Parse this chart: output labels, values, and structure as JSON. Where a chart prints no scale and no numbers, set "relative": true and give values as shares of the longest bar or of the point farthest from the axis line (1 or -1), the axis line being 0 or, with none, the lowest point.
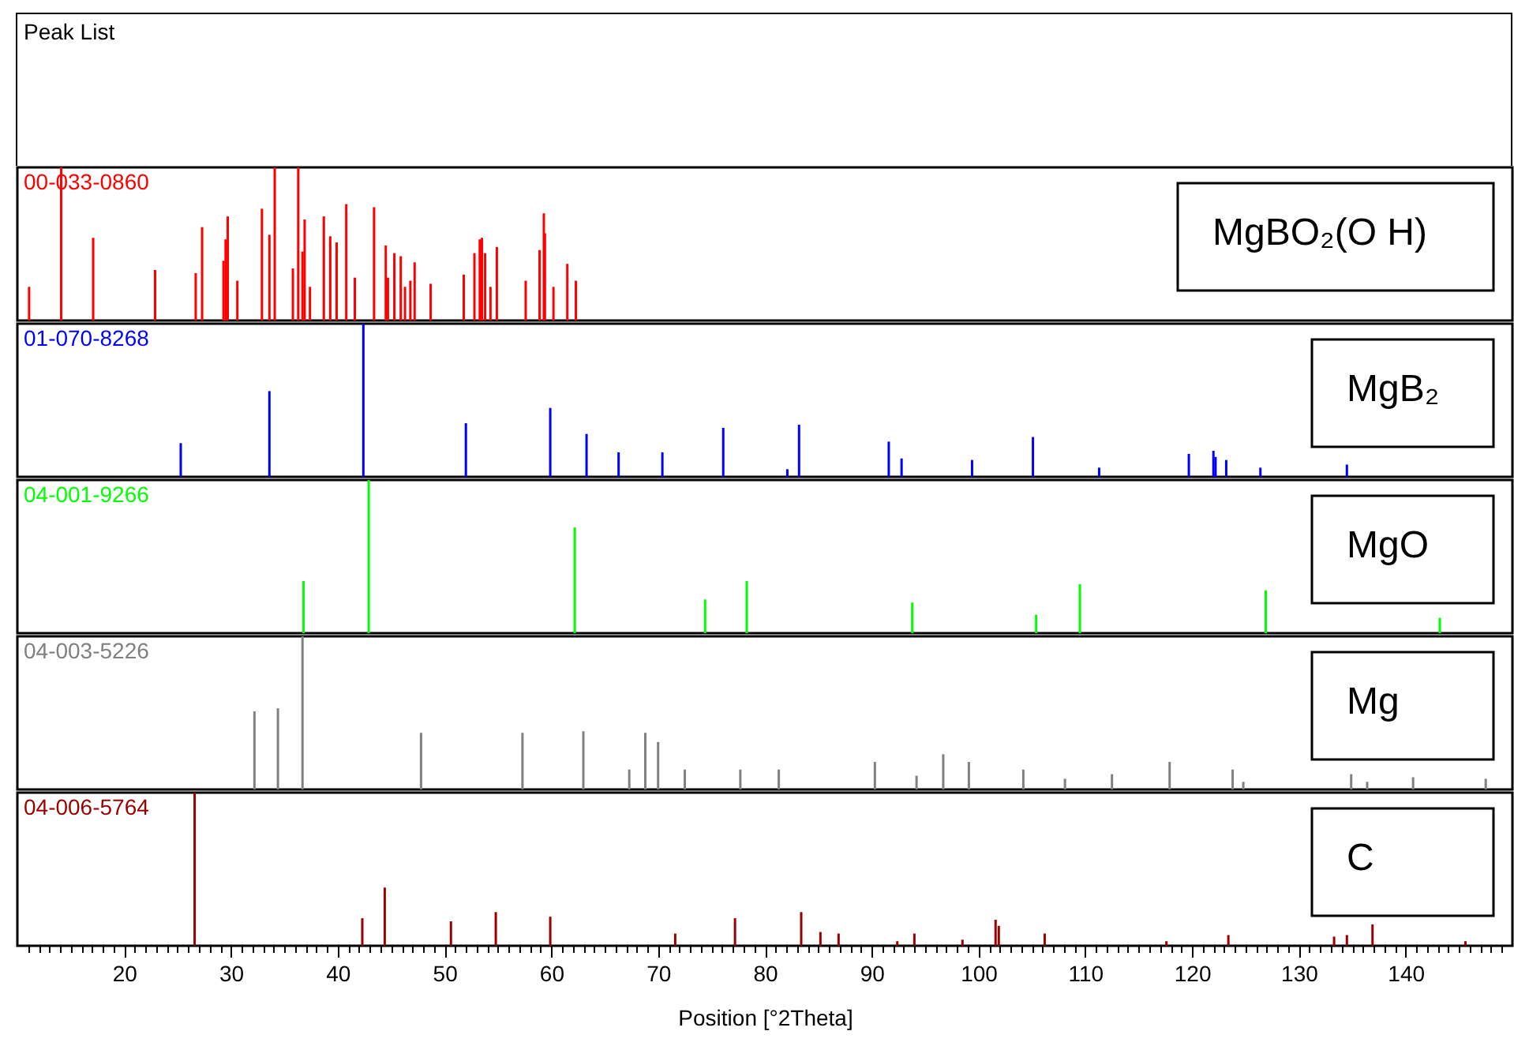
{
  "chart_data": [
    {
      "type": "other",
      "title": "Peak List"
    },
    {
      "type": "bar",
      "title": "00-033-0860",
      "annotations": [
        "MgBO₂(O H)"
      ],
      "relative": true,
      "xlim": [
        10,
        150
      ],
      "tick_labels": false,
      "x": [
        11.1,
        14.1,
        17.1,
        22.9,
        26.7,
        27.3,
        29.3,
        29.5,
        29.7,
        30.6,
        32.9,
        33.6,
        34.1,
        35.8,
        36.3,
        36.7,
        36.9,
        37.4,
        38.7,
        39.3,
        39.9,
        40.8,
        41.6,
        43.4,
        44.5,
        44.7,
        45.3,
        45.9,
        46.3,
        46.8,
        47.2,
        48.7,
        51.8,
        52.8,
        53.3,
        53.5,
        53.8,
        54.3,
        54.9,
        57.6,
        58.9,
        59.3,
        59.4,
        60.2,
        61.5,
        62.3
      ],
      "series": [
        {
          "color": "#ff0000",
          "values": [
            0.22,
            1.0,
            0.54,
            0.33,
            0.31,
            0.61,
            0.39,
            0.53,
            0.68,
            0.26,
            0.73,
            0.56,
            1.0,
            0.34,
            1.0,
            0.45,
            0.66,
            0.22,
            0.68,
            0.55,
            0.51,
            0.76,
            0.28,
            0.74,
            0.49,
            0.28,
            0.44,
            0.42,
            0.22,
            0.26,
            0.38,
            0.24,
            0.3,
            0.44,
            0.53,
            0.54,
            0.44,
            0.22,
            0.48,
            0.26,
            0.46,
            0.7,
            0.57,
            0.22,
            0.37,
            0.26
          ]
        }
      ]
    },
    {
      "type": "bar",
      "title": "01-070-8268",
      "annotations": [
        "MgB₂"
      ],
      "relative": true,
      "xlim": [
        10,
        150
      ],
      "tick_labels": false,
      "x": [
        25.3,
        33.6,
        42.4,
        52.0,
        59.9,
        63.3,
        66.3,
        70.4,
        76.1,
        82.1,
        83.2,
        91.6,
        92.8,
        99.4,
        105.1,
        111.3,
        119.7,
        122.0,
        122.2,
        123.2,
        126.4,
        134.5
      ],
      "series": [
        {
          "color": "#0000ff",
          "values": [
            0.22,
            0.56,
            1.0,
            0.35,
            0.45,
            0.28,
            0.16,
            0.16,
            0.32,
            0.05,
            0.34,
            0.23,
            0.12,
            0.11,
            0.26,
            0.06,
            0.15,
            0.17,
            0.13,
            0.11,
            0.06,
            0.08
          ]
        }
      ]
    },
    {
      "type": "bar",
      "title": "04-001-9266",
      "annotations": [
        "MgO"
      ],
      "relative": true,
      "xlim": [
        10,
        150
      ],
      "tick_labels": false,
      "x": [
        36.8,
        42.9,
        62.2,
        74.4,
        78.3,
        93.8,
        105.4,
        109.5,
        126.9,
        143.2
      ],
      "series": [
        {
          "color": "#00ff00",
          "values": [
            0.34,
            1.0,
            0.69,
            0.22,
            0.34,
            0.2,
            0.12,
            0.32,
            0.28,
            0.1
          ]
        }
      ]
    },
    {
      "type": "bar",
      "title": "04-003-5226",
      "annotations": [
        "Mg"
      ],
      "relative": true,
      "xlim": [
        10,
        150
      ],
      "tick_labels": false,
      "x": [
        32.2,
        34.4,
        36.7,
        47.8,
        57.3,
        63.0,
        67.3,
        68.8,
        70.0,
        72.5,
        77.7,
        81.3,
        90.3,
        94.2,
        96.7,
        99.1,
        104.2,
        108.1,
        112.5,
        117.9,
        123.8,
        124.8,
        134.9,
        136.4,
        140.7,
        147.5
      ],
      "series": [
        {
          "color": "#808080",
          "values": [
            0.51,
            0.53,
            1.0,
            0.37,
            0.37,
            0.38,
            0.13,
            0.37,
            0.31,
            0.13,
            0.13,
            0.13,
            0.18,
            0.09,
            0.23,
            0.18,
            0.13,
            0.07,
            0.1,
            0.18,
            0.13,
            0.05,
            0.1,
            0.05,
            0.08,
            0.07
          ]
        }
      ]
    },
    {
      "type": "bar",
      "title": "04-006-5764",
      "annotations": [
        "C"
      ],
      "relative": true,
      "xlim": [
        10,
        150
      ],
      "tick_labels": "x",
      "xlabel": "Position [°2Theta]",
      "x": [
        26.6,
        42.3,
        44.4,
        50.6,
        54.8,
        59.9,
        71.6,
        77.2,
        83.4,
        85.2,
        86.9,
        92.4,
        94.0,
        98.5,
        101.6,
        101.9,
        106.2,
        117.6,
        123.4,
        133.3,
        134.5,
        136.9,
        145.6
      ],
      "series": [
        {
          "color": "#990000",
          "values": [
            1.0,
            0.18,
            0.38,
            0.16,
            0.22,
            0.19,
            0.08,
            0.18,
            0.22,
            0.09,
            0.08,
            0.03,
            0.08,
            0.04,
            0.17,
            0.13,
            0.08,
            0.03,
            0.07,
            0.06,
            0.07,
            0.14,
            0.03
          ]
        }
      ],
      "xticks": [
        {
          "value": 11,
          "label": null
        },
        {
          "value": 12,
          "label": null
        },
        {
          "value": 13,
          "label": null
        },
        {
          "value": 14,
          "label": null
        },
        {
          "value": 15,
          "label": null
        },
        {
          "value": 16,
          "label": null
        },
        {
          "value": 17,
          "label": null
        },
        {
          "value": 18,
          "label": null
        },
        {
          "value": 19,
          "label": null
        },
        20,
        {
          "value": 21,
          "label": null
        },
        {
          "value": 22,
          "label": null
        },
        {
          "value": 23,
          "label": null
        },
        {
          "value": 24,
          "label": null
        },
        {
          "value": 25,
          "label": null
        },
        {
          "value": 26,
          "label": null
        },
        {
          "value": 27,
          "label": null
        },
        {
          "value": 28,
          "label": null
        },
        {
          "value": 29,
          "label": null
        },
        30,
        {
          "value": 31,
          "label": null
        },
        {
          "value": 32,
          "label": null
        },
        {
          "value": 33,
          "label": null
        },
        {
          "value": 34,
          "label": null
        },
        {
          "value": 35,
          "label": null
        },
        {
          "value": 36,
          "label": null
        },
        {
          "value": 37,
          "label": null
        },
        {
          "value": 38,
          "label": null
        },
        {
          "value": 39,
          "label": null
        },
        40,
        {
          "value": 41,
          "label": null
        },
        {
          "value": 42,
          "label": null
        },
        {
          "value": 43,
          "label": null
        },
        {
          "value": 44,
          "label": null
        },
        {
          "value": 45,
          "label": null
        },
        {
          "value": 46,
          "label": null
        },
        {
          "value": 47,
          "label": null
        },
        {
          "value": 48,
          "label": null
        },
        {
          "value": 49,
          "label": null
        },
        50,
        {
          "value": 51,
          "label": null
        },
        {
          "value": 52,
          "label": null
        },
        {
          "value": 53,
          "label": null
        },
        {
          "value": 54,
          "label": null
        },
        {
          "value": 55,
          "label": null
        },
        {
          "value": 56,
          "label": null
        },
        {
          "value": 57,
          "label": null
        },
        {
          "value": 58,
          "label": null
        },
        {
          "value": 59,
          "label": null
        },
        60,
        {
          "value": 61,
          "label": null
        },
        {
          "value": 62,
          "label": null
        },
        {
          "value": 63,
          "label": null
        },
        {
          "value": 64,
          "label": null
        },
        {
          "value": 65,
          "label": null
        },
        {
          "value": 66,
          "label": null
        },
        {
          "value": 67,
          "label": null
        },
        {
          "value": 68,
          "label": null
        },
        {
          "value": 69,
          "label": null
        },
        70,
        {
          "value": 71,
          "label": null
        },
        {
          "value": 72,
          "label": null
        },
        {
          "value": 73,
          "label": null
        },
        {
          "value": 74,
          "label": null
        },
        {
          "value": 75,
          "label": null
        },
        {
          "value": 76,
          "label": null
        },
        {
          "value": 77,
          "label": null
        },
        {
          "value": 78,
          "label": null
        },
        {
          "value": 79,
          "label": null
        },
        80,
        {
          "value": 81,
          "label": null
        },
        {
          "value": 82,
          "label": null
        },
        {
          "value": 83,
          "label": null
        },
        {
          "value": 84,
          "label": null
        },
        {
          "value": 85,
          "label": null
        },
        {
          "value": 86,
          "label": null
        },
        {
          "value": 87,
          "label": null
        },
        {
          "value": 88,
          "label": null
        },
        {
          "value": 89,
          "label": null
        },
        90,
        {
          "value": 91,
          "label": null
        },
        {
          "value": 92,
          "label": null
        },
        {
          "value": 93,
          "label": null
        },
        {
          "value": 94,
          "label": null
        },
        {
          "value": 95,
          "label": null
        },
        {
          "value": 96,
          "label": null
        },
        {
          "value": 97,
          "label": null
        },
        {
          "value": 98,
          "label": null
        },
        {
          "value": 99,
          "label": null
        },
        100,
        {
          "value": 101,
          "label": null
        },
        {
          "value": 102,
          "label": null
        },
        {
          "value": 103,
          "label": null
        },
        {
          "value": 104,
          "label": null
        },
        {
          "value": 105,
          "label": null
        },
        {
          "value": 106,
          "label": null
        },
        {
          "value": 107,
          "label": null
        },
        {
          "value": 108,
          "label": null
        },
        {
          "value": 109,
          "label": null
        },
        110,
        {
          "value": 111,
          "label": null
        },
        {
          "value": 112,
          "label": null
        },
        {
          "value": 113,
          "label": null
        },
        {
          "value": 114,
          "label": null
        },
        {
          "value": 115,
          "label": null
        },
        {
          "value": 116,
          "label": null
        },
        {
          "value": 117,
          "label": null
        },
        {
          "value": 118,
          "label": null
        },
        {
          "value": 119,
          "label": null
        },
        120,
        {
          "value": 121,
          "label": null
        },
        {
          "value": 122,
          "label": null
        },
        {
          "value": 123,
          "label": null
        },
        {
          "value": 124,
          "label": null
        },
        {
          "value": 125,
          "label": null
        },
        {
          "value": 126,
          "label": null
        },
        {
          "value": 127,
          "label": null
        },
        {
          "value": 128,
          "label": null
        },
        {
          "value": 129,
          "label": null
        },
        130,
        {
          "value": 131,
          "label": null
        },
        {
          "value": 132,
          "label": null
        },
        {
          "value": 133,
          "label": null
        },
        {
          "value": 134,
          "label": null
        },
        {
          "value": 135,
          "label": null
        },
        {
          "value": 136,
          "label": null
        },
        {
          "value": 137,
          "label": null
        },
        {
          "value": 138,
          "label": null
        },
        {
          "value": 139,
          "label": null
        },
        140,
        {
          "value": 141,
          "label": null
        },
        {
          "value": 142,
          "label": null
        },
        {
          "value": 143,
          "label": null
        },
        {
          "value": 144,
          "label": null
        },
        {
          "value": 145,
          "label": null
        },
        {
          "value": 146,
          "label": null
        },
        {
          "value": 147,
          "label": null
        },
        {
          "value": 148,
          "label": null
        },
        {
          "value": 149,
          "label": null
        }
      ]
    }
  ]
}
